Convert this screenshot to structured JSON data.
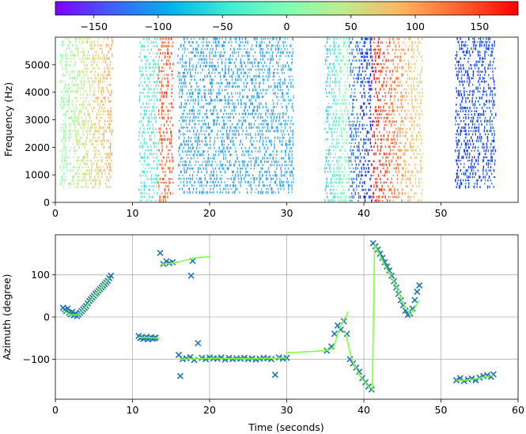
{
  "colorbar": {
    "ticks": [
      -150,
      -100,
      -50,
      0,
      50,
      100,
      150
    ],
    "range": [
      -180,
      180
    ],
    "colormap": "rainbow"
  },
  "chart_data": [
    {
      "type": "heatmap",
      "xlabel": "",
      "ylabel": "Frequency (Hz)",
      "xlim": [
        0,
        60
      ],
      "ylim": [
        0,
        6000
      ],
      "xticks": [
        0,
        10,
        20,
        30,
        40,
        50
      ],
      "yticks": [
        0,
        1000,
        2000,
        3000,
        4000,
        5000
      ],
      "value_range": [
        -180,
        180
      ],
      "segments": [
        {
          "t0": 0.6,
          "t1": 7.3,
          "value_start": 10,
          "value_end": 95,
          "fmin": 500,
          "fmax": 6000
        },
        {
          "t0": 10.8,
          "t1": 13.3,
          "value_start": -50,
          "value_end": -50,
          "fmin": 0,
          "fmax": 6000
        },
        {
          "t0": 13.3,
          "t1": 15.2,
          "value_start": 130,
          "value_end": 140,
          "fmin": 0,
          "fmax": 6000
        },
        {
          "t0": 15.8,
          "t1": 30.8,
          "value_start": -100,
          "value_end": -95,
          "fmin": 300,
          "fmax": 6000
        },
        {
          "t0": 34.9,
          "t1": 38.0,
          "value_start": -80,
          "value_end": 10,
          "fmin": 0,
          "fmax": 6000
        },
        {
          "t0": 38.0,
          "t1": 41.0,
          "value_start": -110,
          "value_end": -170,
          "fmin": 0,
          "fmax": 6000
        },
        {
          "t0": 41.0,
          "t1": 47.5,
          "value_start": 170,
          "value_end": 60,
          "fmin": 0,
          "fmax": 6000
        },
        {
          "t0": 51.8,
          "t1": 57.0,
          "value_start": -150,
          "value_end": -140,
          "fmin": 500,
          "fmax": 6000
        }
      ]
    },
    {
      "type": "scatter",
      "xlabel": "Time (seconds)",
      "ylabel": "Azimuth (degree)",
      "xlim": [
        0,
        60
      ],
      "ylim": [
        -195,
        195
      ],
      "xticks": [
        0,
        10,
        20,
        30,
        40,
        50,
        60
      ],
      "yticks": [
        -100,
        0,
        100
      ],
      "grid": true,
      "series": [
        {
          "marker": "x",
          "color": "#1f77b4",
          "points": [
            [
              1.0,
              22
            ],
            [
              1.2,
              18
            ],
            [
              1.4,
              14
            ],
            [
              1.6,
              20
            ],
            [
              1.8,
              10
            ],
            [
              2.0,
              6
            ],
            [
              2.2,
              12
            ],
            [
              2.4,
              4
            ],
            [
              2.6,
              8
            ],
            [
              2.8,
              2
            ],
            [
              3.0,
              6
            ],
            [
              3.2,
              10
            ],
            [
              3.4,
              14
            ],
            [
              3.6,
              18
            ],
            [
              3.8,
              22
            ],
            [
              4.0,
              26
            ],
            [
              4.2,
              32
            ],
            [
              4.4,
              38
            ],
            [
              4.6,
              42
            ],
            [
              4.8,
              46
            ],
            [
              5.0,
              50
            ],
            [
              5.2,
              55
            ],
            [
              5.4,
              58
            ],
            [
              5.6,
              62
            ],
            [
              5.8,
              66
            ],
            [
              6.0,
              70
            ],
            [
              6.2,
              74
            ],
            [
              6.4,
              78
            ],
            [
              6.6,
              82
            ],
            [
              6.8,
              86
            ],
            [
              7.0,
              92
            ],
            [
              7.2,
              98
            ],
            [
              10.8,
              -45
            ],
            [
              11.0,
              -50
            ],
            [
              11.2,
              -48
            ],
            [
              11.4,
              -52
            ],
            [
              11.6,
              -50
            ],
            [
              11.8,
              -47
            ],
            [
              12.0,
              -53
            ],
            [
              12.2,
              -50
            ],
            [
              12.4,
              -48
            ],
            [
              12.6,
              -52
            ],
            [
              12.8,
              -50
            ],
            [
              13.0,
              -49
            ],
            [
              13.6,
              152
            ],
            [
              14.0,
              126
            ],
            [
              14.4,
              132
            ],
            [
              14.8,
              128
            ],
            [
              15.2,
              130
            ],
            [
              17.6,
              98
            ],
            [
              17.8,
              133
            ],
            [
              16.0,
              -90
            ],
            [
              16.2,
              -140
            ],
            [
              16.5,
              -100
            ],
            [
              17.0,
              -98
            ],
            [
              17.5,
              -95
            ],
            [
              18.0,
              -102
            ],
            [
              18.5,
              -62
            ],
            [
              19.0,
              -97
            ],
            [
              19.5,
              -100
            ],
            [
              20.0,
              -96
            ],
            [
              20.5,
              -98
            ],
            [
              21.0,
              -99
            ],
            [
              21.5,
              -96
            ],
            [
              22.0,
              -101
            ],
            [
              22.5,
              -97
            ],
            [
              23.0,
              -100
            ],
            [
              23.5,
              -98
            ],
            [
              24.0,
              -99
            ],
            [
              24.5,
              -97
            ],
            [
              25.0,
              -100
            ],
            [
              25.5,
              -98
            ],
            [
              26.0,
              -101
            ],
            [
              26.5,
              -99
            ],
            [
              27.0,
              -97
            ],
            [
              27.5,
              -98
            ],
            [
              28.0,
              -100
            ],
            [
              28.5,
              -137
            ],
            [
              29.0,
              -96
            ],
            [
              29.5,
              -99
            ],
            [
              30.0,
              -97
            ],
            [
              35.2,
              -80
            ],
            [
              35.8,
              -70
            ],
            [
              36.2,
              -40
            ],
            [
              36.6,
              -20
            ],
            [
              37.0,
              -30
            ],
            [
              37.4,
              -10
            ],
            [
              37.8,
              -40
            ],
            [
              38.2,
              -100
            ],
            [
              38.6,
              -110
            ],
            [
              39.0,
              -120
            ],
            [
              39.4,
              -130
            ],
            [
              39.8,
              -145
            ],
            [
              40.2,
              -155
            ],
            [
              40.6,
              -165
            ],
            [
              41.0,
              -172
            ],
            [
              41.2,
              175
            ],
            [
              41.5,
              168
            ],
            [
              41.8,
              160
            ],
            [
              42.1,
              150
            ],
            [
              42.4,
              140
            ],
            [
              42.7,
              130
            ],
            [
              43.0,
              120
            ],
            [
              43.3,
              110
            ],
            [
              43.6,
              98
            ],
            [
              43.9,
              85
            ],
            [
              44.2,
              70
            ],
            [
              44.5,
              55
            ],
            [
              44.8,
              40
            ],
            [
              45.1,
              28
            ],
            [
              45.4,
              15
            ],
            [
              45.7,
              5
            ],
            [
              46.0,
              8
            ],
            [
              46.3,
              20
            ],
            [
              46.6,
              40
            ],
            [
              46.9,
              60
            ],
            [
              47.2,
              75
            ],
            [
              52.0,
              -150
            ],
            [
              52.5,
              -145
            ],
            [
              53.0,
              -152
            ],
            [
              53.5,
              -148
            ],
            [
              54.0,
              -146
            ],
            [
              54.5,
              -150
            ],
            [
              55.0,
              -144
            ],
            [
              55.5,
              -140
            ],
            [
              56.0,
              -138
            ],
            [
              56.5,
              -142
            ],
            [
              56.8,
              -136
            ]
          ]
        },
        {
          "marker": "line",
          "color": "#7fff3f",
          "segments": [
            [
              [
                1.0,
                15
              ],
              [
                2.0,
                5
              ],
              [
                3.0,
                5
              ],
              [
                4.0,
                25
              ],
              [
                5.0,
                50
              ],
              [
                6.0,
                70
              ],
              [
                7.0,
                92
              ]
            ],
            [
              [
                10.8,
                -48
              ],
              [
                13.6,
                -50
              ]
            ],
            [
              [
                13.6,
                125
              ],
              [
                15.0,
                127
              ],
              [
                17.0,
                135
              ],
              [
                18.0,
                140
              ],
              [
                20.0,
                143
              ]
            ],
            [
              [
                16.0,
                -100
              ],
              [
                20.0,
                -98
              ],
              [
                25.0,
                -99
              ],
              [
                30.0,
                -97
              ]
            ],
            [
              [
                30.0,
                -85
              ],
              [
                35.0,
                -80
              ],
              [
                36.0,
                -75
              ],
              [
                37.0,
                -20
              ],
              [
                38.0,
                12
              ]
            ],
            [
              [
                37.6,
                -35
              ],
              [
                38.4,
                -100
              ],
              [
                39.5,
                -140
              ],
              [
                40.8,
                -170
              ]
            ],
            [
              [
                41.1,
                -175
              ],
              [
                41.4,
                172
              ]
            ],
            [
              [
                41.4,
                172
              ],
              [
                42.5,
                130
              ],
              [
                44.0,
                80
              ],
              [
                45.0,
                35
              ],
              [
                46.0,
                5
              ],
              [
                47.2,
                40
              ]
            ],
            [
              [
                52.0,
                -150
              ],
              [
                53.5,
                -150
              ],
              [
                55.0,
                -145
              ],
              [
                56.8,
                -138
              ]
            ]
          ]
        }
      ]
    }
  ]
}
